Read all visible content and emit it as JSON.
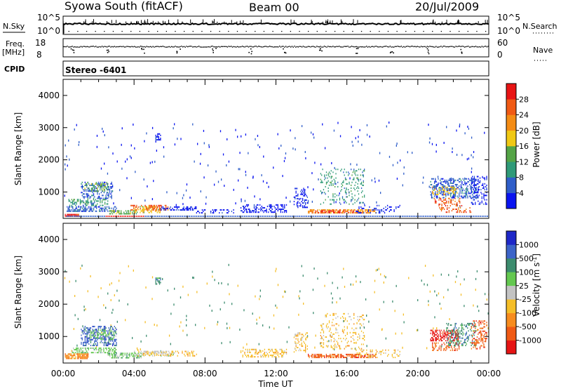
{
  "header": {
    "title": "Syowa South (fitACF)",
    "beam": "Beam 00",
    "date": "20/Jul/2009"
  },
  "top_panels": {
    "nsky_label": "N.Sky",
    "nsky_ticks_left": [
      "10^5",
      "10^0"
    ],
    "nsky_ticks_right": [
      "10^5",
      "10^0"
    ],
    "nsearch_label": "N.Search",
    "freq_label": "Freq.",
    "freq_unit": "[MHz]",
    "freq_ticks": [
      "18",
      "8"
    ],
    "nave_ticks": [
      "60",
      "0"
    ],
    "nave_label": "Nave",
    "cpid_label": "CPID",
    "cpid_value": "Stereo -6401"
  },
  "chart_data": [
    {
      "type": "heatmap",
      "name": "power",
      "ylabel": "Slant Range [km]",
      "ylim": [
        180,
        4500
      ],
      "yticks": [
        "1000",
        "2000",
        "3000",
        "4000"
      ],
      "xlim": [
        0,
        24
      ],
      "colorbar": {
        "label": "Power [dB]",
        "ticks": [
          "4",
          "8",
          "12",
          "16",
          "20",
          "24",
          "28"
        ],
        "colors": [
          "#0a14f0",
          "#2f5ec9",
          "#2f9a78",
          "#54a446",
          "#f0c814",
          "#f48c14",
          "#f05a14",
          "#e81414"
        ]
      },
      "patches": [
        {
          "t": [
            0.1,
            0.9
          ],
          "r": [
            230,
            280
          ],
          "level": 7,
          "density": 0.9
        },
        {
          "t": [
            0.2,
            3.0
          ],
          "r": [
            380,
            560
          ],
          "level": 1,
          "density": 0.55
        },
        {
          "t": [
            0.3,
            2.5
          ],
          "r": [
            560,
            780
          ],
          "level": 2,
          "density": 0.4
        },
        {
          "t": [
            1.0,
            2.8
          ],
          "r": [
            780,
            1300
          ],
          "level": 1,
          "density": 0.4
        },
        {
          "t": [
            1.2,
            2.5
          ],
          "r": [
            1000,
            1300
          ],
          "level": 3,
          "density": 0.35
        },
        {
          "t": [
            2.6,
            4.2
          ],
          "r": [
            300,
            430
          ],
          "level": 3,
          "density": 0.5
        },
        {
          "t": [
            4.0,
            5.5
          ],
          "r": [
            340,
            540
          ],
          "level": 4,
          "density": 0.45
        },
        {
          "t": [
            3.8,
            6.0
          ],
          "r": [
            420,
            560
          ],
          "level": 6,
          "density": 0.35
        },
        {
          "t": [
            5.5,
            7.5
          ],
          "r": [
            420,
            540
          ],
          "level": 0,
          "density": 0.55
        },
        {
          "t": [
            7.5,
            9.6
          ],
          "r": [
            330,
            430
          ],
          "level": 0,
          "density": 0.3
        },
        {
          "t": [
            5.2,
            5.5
          ],
          "r": [
            2600,
            2800
          ],
          "level": 0,
          "density": 0.6
        },
        {
          "t": [
            10.0,
            12.6
          ],
          "r": [
            350,
            620
          ],
          "level": 0,
          "density": 0.45
        },
        {
          "t": [
            13.0,
            13.8
          ],
          "r": [
            500,
            1100
          ],
          "level": 0,
          "density": 0.3
        },
        {
          "t": [
            13.8,
            17.6
          ],
          "r": [
            330,
            460
          ],
          "level": 5,
          "density": 0.6
        },
        {
          "t": [
            14.2,
            16.8
          ],
          "r": [
            340,
            420
          ],
          "level": 7,
          "density": 0.45
        },
        {
          "t": [
            14.5,
            17.0
          ],
          "r": [
            600,
            1700
          ],
          "level": 2,
          "density": 0.18
        },
        {
          "t": [
            16.5,
            19.0
          ],
          "r": [
            330,
            600
          ],
          "level": 0,
          "density": 0.2
        },
        {
          "t": [
            20.7,
            23.4
          ],
          "r": [
            800,
            1400
          ],
          "level": 1,
          "density": 0.45
        },
        {
          "t": [
            20.8,
            22.2
          ],
          "r": [
            900,
            1150
          ],
          "level": 4,
          "density": 0.3
        },
        {
          "t": [
            20.9,
            22.5
          ],
          "r": [
            550,
            800
          ],
          "level": 6,
          "density": 0.35
        },
        {
          "t": [
            21.2,
            23.0
          ],
          "r": [
            350,
            500
          ],
          "level": 6,
          "density": 0.3
        },
        {
          "t": [
            23.0,
            23.9
          ],
          "r": [
            600,
            1500
          ],
          "level": 0,
          "density": 0.3
        }
      ]
    },
    {
      "type": "heatmap",
      "name": "velocity",
      "ylabel": "Slant Range [km]",
      "ylim": [
        180,
        4500
      ],
      "yticks": [
        "1000",
        "2000",
        "3000",
        "4000"
      ],
      "xlabel": "Time UT",
      "xticks": [
        "00:00",
        "04:00",
        "08:00",
        "12:00",
        "16:00",
        "20:00",
        "00:00"
      ],
      "xlim": [
        0,
        24
      ],
      "colorbar": {
        "label": "Velocity [m s",
        "label_sup": "-1",
        "label_end": "]",
        "ticks": [
          "-1000",
          "-500",
          "-100",
          "-25",
          "25",
          "100",
          "500",
          "1000"
        ],
        "colors": [
          "#e61414",
          "#f05a14",
          "#f78c1e",
          "#f5be28",
          "#c3c3c3",
          "#64c850",
          "#3c8c6e",
          "#3c64c8",
          "#1e28c8"
        ]
      },
      "patches": [
        {
          "t": [
            0.1,
            1.4
          ],
          "r": [
            300,
            440
          ],
          "level": 2,
          "density": 0.85
        },
        {
          "t": [
            0.5,
            3.0
          ],
          "r": [
            480,
            620
          ],
          "level": 5,
          "density": 0.45
        },
        {
          "t": [
            1.0,
            3.0
          ],
          "r": [
            700,
            1300
          ],
          "level": 7,
          "density": 0.45
        },
        {
          "t": [
            1.5,
            3.0
          ],
          "r": [
            900,
            1200
          ],
          "level": 5,
          "density": 0.3
        },
        {
          "t": [
            2.5,
            4.5
          ],
          "r": [
            320,
            460
          ],
          "level": 5,
          "density": 0.45
        },
        {
          "t": [
            4.0,
            6.3
          ],
          "r": [
            380,
            520
          ],
          "level": 4,
          "density": 0.4
        },
        {
          "t": [
            4.5,
            6.2
          ],
          "r": [
            400,
            500
          ],
          "level": 3,
          "density": 0.3
        },
        {
          "t": [
            6.0,
            7.6
          ],
          "r": [
            380,
            520
          ],
          "level": 3,
          "density": 0.25
        },
        {
          "t": [
            5.2,
            5.5
          ],
          "r": [
            2600,
            2800
          ],
          "level": 6,
          "density": 0.5
        },
        {
          "t": [
            10.0,
            12.6
          ],
          "r": [
            350,
            620
          ],
          "level": 3,
          "density": 0.4
        },
        {
          "t": [
            13.0,
            13.8
          ],
          "r": [
            500,
            1100
          ],
          "level": 3,
          "density": 0.3
        },
        {
          "t": [
            13.8,
            17.6
          ],
          "r": [
            330,
            460
          ],
          "level": 1,
          "density": 0.6
        },
        {
          "t": [
            14.5,
            17.0
          ],
          "r": [
            600,
            1700
          ],
          "level": 3,
          "density": 0.18
        },
        {
          "t": [
            16.5,
            19.0
          ],
          "r": [
            330,
            600
          ],
          "level": 3,
          "density": 0.2
        },
        {
          "t": [
            20.7,
            22.3
          ],
          "r": [
            850,
            1200
          ],
          "level": 0,
          "density": 0.5
        },
        {
          "t": [
            20.8,
            22.4
          ],
          "r": [
            550,
            800
          ],
          "level": 1,
          "density": 0.4
        },
        {
          "t": [
            21.6,
            23.3
          ],
          "r": [
            700,
            1400
          ],
          "level": 6,
          "density": 0.3
        },
        {
          "t": [
            23.0,
            23.9
          ],
          "r": [
            600,
            1500
          ],
          "level": 1,
          "density": 0.3
        }
      ]
    }
  ]
}
